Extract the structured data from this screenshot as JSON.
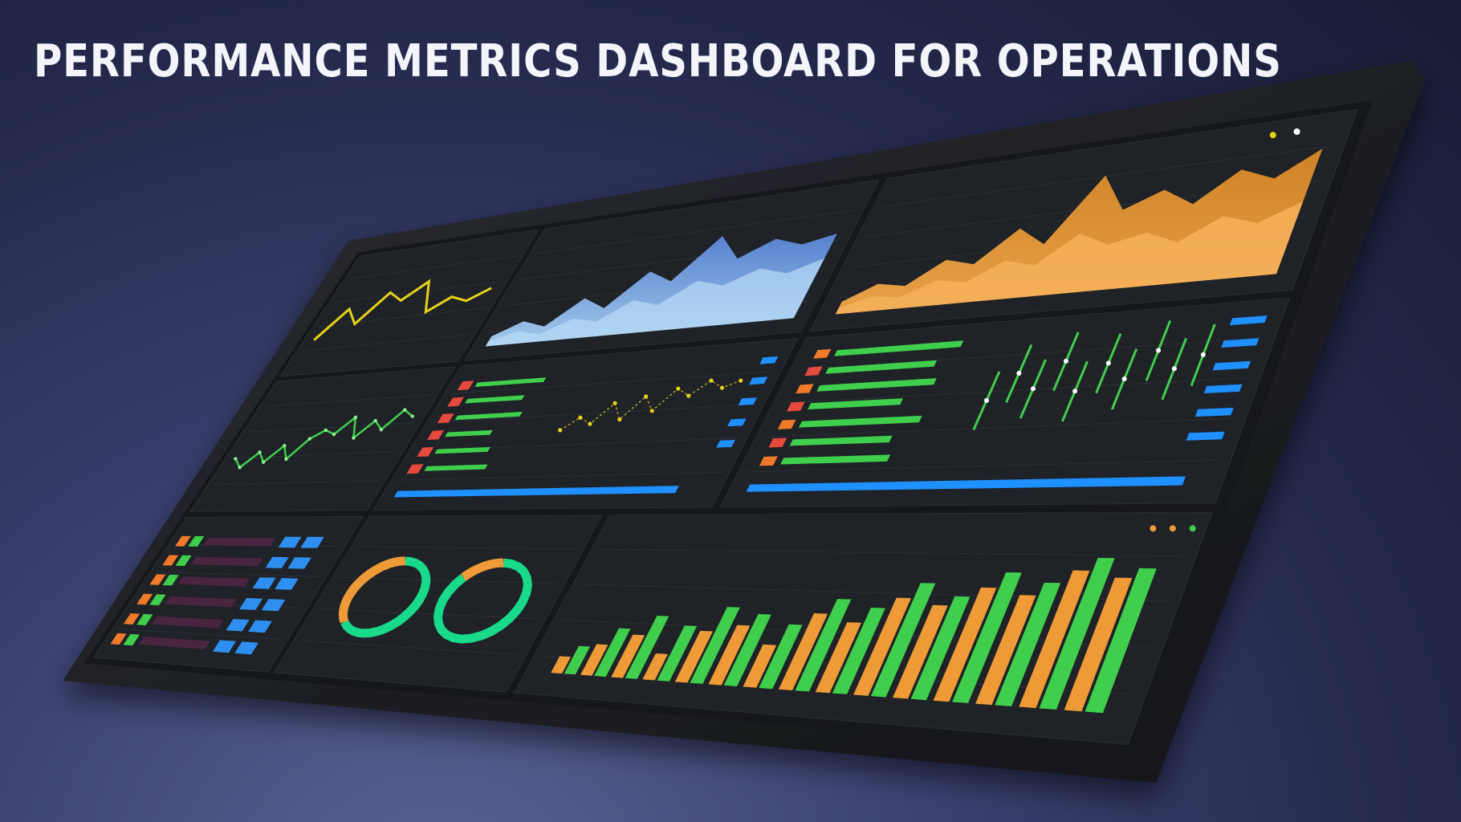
{
  "headline": "PERFORMANCE METRICS DASHBOARD FOR OPERATIONS",
  "colors": {
    "background": "#23284a",
    "monitor_bezel": "#1b1c20",
    "screen": "#15171b",
    "panel": "#1f2227",
    "yellow": "#e6d21a",
    "blue": "#6c97dd",
    "orange": "#ee9a36",
    "green": "#3fcf4c",
    "accent_blue": "#1e90ff",
    "red": "#e54a3c",
    "donut_green": "#19d98a"
  },
  "panels": {
    "yellow_line": {
      "values": [
        20,
        55,
        35,
        70,
        58,
        78,
        40,
        55,
        48,
        60
      ]
    },
    "blue_area": {
      "series": [
        {
          "values": [
            8,
            18,
            12,
            32,
            22,
            48,
            38,
            70,
            50,
            62,
            55,
            60
          ]
        },
        {
          "values": [
            4,
            10,
            6,
            16,
            12,
            26,
            20,
            36,
            30,
            40,
            34,
            42
          ]
        }
      ]
    },
    "orange_area": {
      "series": [
        {
          "values": [
            10,
            22,
            18,
            36,
            30,
            55,
            40,
            90,
            60,
            72,
            58,
            80,
            70,
            88
          ]
        },
        {
          "values": [
            5,
            12,
            9,
            20,
            16,
            30,
            24,
            45,
            34,
            40,
            30,
            46,
            38,
            50
          ]
        }
      ]
    },
    "green_line": {
      "values": [
        30,
        22,
        35,
        26,
        40,
        28,
        45,
        52,
        48,
        62,
        44,
        58,
        50,
        66,
        60
      ]
    },
    "red_list": {
      "rows": 6,
      "bar_fill": [
        0.9,
        0.75,
        0.85,
        0.6,
        0.7,
        0.8
      ]
    },
    "yellow_scatter": {
      "values": [
        30,
        42,
        35,
        55,
        38,
        60,
        45,
        66,
        58,
        72,
        64,
        70
      ]
    },
    "blue_progress": {
      "value": 0.92
    },
    "green_bars_list": {
      "bar_fill": [
        0.95,
        0.82,
        0.88,
        0.7,
        0.9,
        0.75,
        0.8
      ]
    },
    "wide_progress": {
      "value": 0.97
    },
    "dot_chart": {
      "values": [
        40,
        62,
        48,
        70,
        44,
        66,
        52,
        74,
        58,
        68
      ]
    },
    "task_list": {
      "rows": 6
    },
    "donuts": [
      {
        "segments": [
          0.62,
          0.38
        ]
      },
      {
        "segments": [
          0.85,
          0.15
        ]
      }
    ],
    "bar_chart": {
      "type": "bar",
      "series": [
        {
          "values": [
            12,
            22,
            30,
            18,
            35,
            40,
            28,
            50,
            45,
            62,
            58,
            70,
            66,
            82,
            78
          ]
        },
        {
          "values": [
            20,
            34,
            44,
            38,
            52,
            48,
            42,
            60,
            55,
            72,
            64,
            80,
            74,
            90,
            84
          ]
        }
      ]
    }
  }
}
